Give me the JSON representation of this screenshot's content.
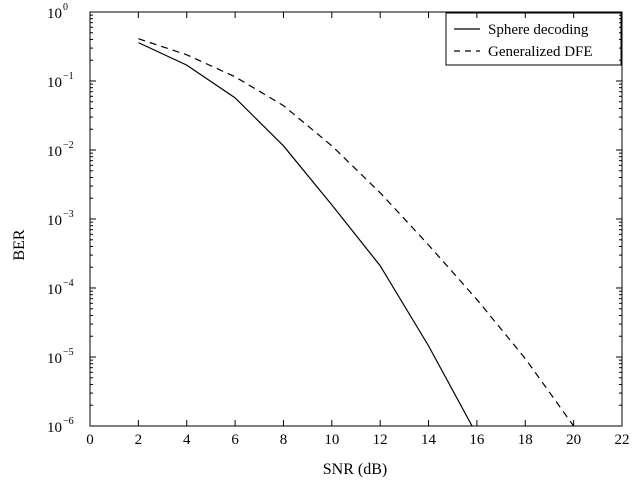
{
  "chart_data": {
    "type": "line",
    "title": "",
    "xlabel": "SNR (dB)",
    "ylabel": "BER",
    "xlim": [
      0,
      22
    ],
    "ylim": [
      1e-06,
      1
    ],
    "yscale": "log",
    "grid": false,
    "legend_position": "top-right",
    "x_ticks": [
      0,
      2,
      4,
      6,
      8,
      10,
      12,
      14,
      16,
      18,
      20,
      22
    ],
    "x_tick_labels": [
      "0",
      "2",
      "4",
      "6",
      "8",
      "10",
      "12",
      "14",
      "16",
      "18",
      "20",
      "22"
    ],
    "y_ticks": [
      {
        "value": 1,
        "base": "10",
        "exp": "0"
      },
      {
        "value": 0.1,
        "base": "10",
        "exp": "−1"
      },
      {
        "value": 0.01,
        "base": "10",
        "exp": "−2"
      },
      {
        "value": 0.001,
        "base": "10",
        "exp": "−3"
      },
      {
        "value": 0.0001,
        "base": "10",
        "exp": "−4"
      },
      {
        "value": 1e-05,
        "base": "10",
        "exp": "−5"
      },
      {
        "value": 1e-06,
        "base": "10",
        "exp": "−6"
      }
    ],
    "series": [
      {
        "name": "Sphere decoding",
        "style": "solid",
        "color": "#000000",
        "x": [
          2,
          4,
          6,
          8,
          10,
          12,
          14,
          15.8
        ],
        "y": [
          0.36,
          0.17,
          0.057,
          0.0115,
          0.0016,
          0.00021,
          1.45e-05,
          1e-06
        ]
      },
      {
        "name": "Generalized DFE",
        "style": "dashed",
        "color": "#000000",
        "x": [
          2,
          4,
          6,
          8,
          10,
          12,
          14,
          16,
          18,
          20
        ],
        "y": [
          0.41,
          0.24,
          0.115,
          0.044,
          0.0115,
          0.0024,
          0.00042,
          6.8e-05,
          9.5e-06,
          1e-06
        ]
      }
    ]
  }
}
